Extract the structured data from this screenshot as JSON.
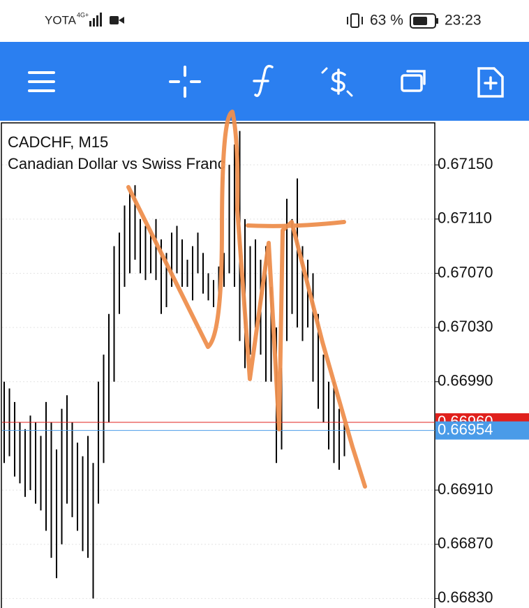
{
  "status_bar": {
    "carrier": "YOTA",
    "network": "4G+",
    "battery": "63 %",
    "time": "23:23"
  },
  "chart_data": {
    "type": "ohlc",
    "title": "CADCHF, M15",
    "subtitle": "Canadian Dollar vs Swiss Franc",
    "color": "#000000",
    "high": [
      0.6699,
      0.66985,
      0.66975,
      0.6696,
      0.66955,
      0.66965,
      0.6696,
      0.6695,
      0.66975,
      0.6696,
      0.6694,
      0.6697,
      0.6698,
      0.6696,
      0.66945,
      0.66935,
      0.6695,
      0.6693,
      0.6699,
      0.6701,
      0.6704,
      0.6709,
      0.671,
      0.6712,
      0.6713,
      0.67135,
      0.6711,
      0.67105,
      0.671,
      0.6711,
      0.67095,
      0.67085,
      0.671,
      0.67105,
      0.67095,
      0.6708,
      0.6709,
      0.671,
      0.67085,
      0.6707,
      0.67065,
      0.67075,
      0.67085,
      0.6715,
      0.67165,
      0.67175,
      0.6711,
      0.6709,
      0.67095,
      0.6708,
      0.6709,
      0.6706,
      0.6703,
      0.67,
      0.67125,
      0.6711,
      0.6714,
      0.6709,
      0.6708,
      0.6707,
      0.6704,
      0.6701,
      0.6699,
      0.6699,
      0.6697,
      0.6696
    ],
    "low": [
      0.6693,
      0.66935,
      0.6692,
      0.66915,
      0.66905,
      0.6691,
      0.669,
      0.66895,
      0.6688,
      0.6686,
      0.66845,
      0.6687,
      0.669,
      0.6689,
      0.6688,
      0.66865,
      0.6686,
      0.6683,
      0.669,
      0.6693,
      0.6696,
      0.6699,
      0.6704,
      0.6706,
      0.6707,
      0.6708,
      0.6707,
      0.67065,
      0.6707,
      0.67065,
      0.6704,
      0.67045,
      0.6706,
      0.6707,
      0.6706,
      0.6706,
      0.6705,
      0.6707,
      0.67055,
      0.6705,
      0.67045,
      0.6705,
      0.6706,
      0.6707,
      0.6706,
      0.6702,
      0.67,
      0.6701,
      0.6703,
      0.6701,
      0.6699,
      0.6699,
      0.6693,
      0.6694,
      0.6702,
      0.6704,
      0.6703,
      0.6702,
      0.6703,
      0.6699,
      0.6697,
      0.6696,
      0.6694,
      0.6693,
      0.66925,
      0.66935
    ],
    "ylim": [
      0.66823,
      0.67181
    ],
    "yticks": [
      {
        "value": 0.6715,
        "label": "0.67150"
      },
      {
        "value": 0.6711,
        "label": "0.67110"
      },
      {
        "value": 0.6707,
        "label": "0.67070"
      },
      {
        "value": 0.6703,
        "label": "0.67030"
      },
      {
        "value": 0.6699,
        "label": "0.66990"
      },
      {
        "value": 0.6691,
        "label": "0.66910"
      },
      {
        "value": 0.6687,
        "label": "0.66870"
      },
      {
        "value": 0.6683,
        "label": "0.66830"
      }
    ],
    "grid": true,
    "price_lines": [
      {
        "value": 0.6696,
        "label": "0.66960",
        "color": "#e0201c"
      },
      {
        "value": 0.66954,
        "label": "0.66954",
        "color": "#4a9be8"
      }
    ]
  }
}
